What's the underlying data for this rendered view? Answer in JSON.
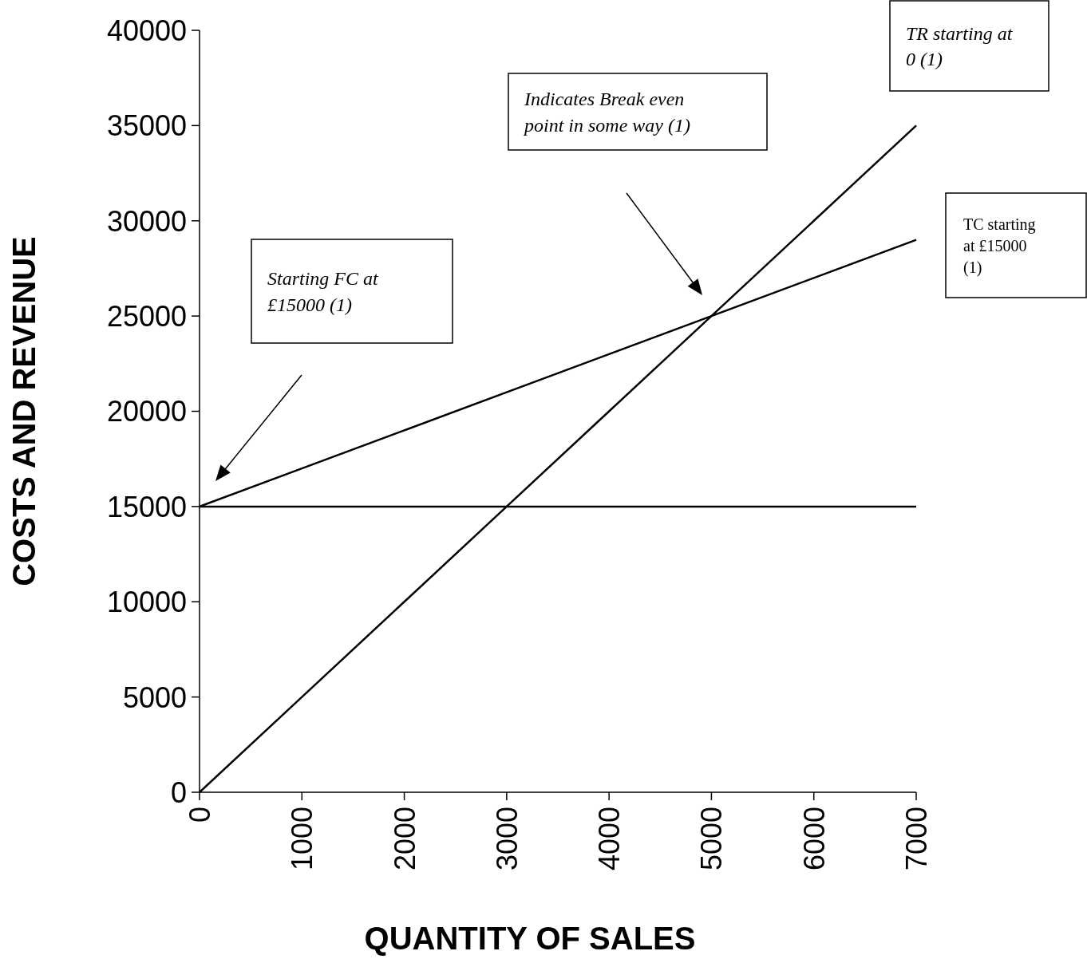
{
  "chart_data": {
    "type": "line",
    "xlabel": "QUANTITY OF SALES",
    "ylabel": "COSTS AND REVENUE",
    "x": [
      0,
      1000,
      2000,
      3000,
      4000,
      5000,
      6000,
      7000
    ],
    "series": [
      {
        "color": "#000000",
        "values": [
          15000,
          15000,
          15000,
          15000,
          15000,
          15000,
          15000,
          15000
        ]
      },
      {
        "color": "#000000",
        "values": [
          15000,
          17000,
          19000,
          21000,
          23000,
          25000,
          27000,
          29000
        ]
      },
      {
        "color": "#000000",
        "values": [
          0,
          5000,
          10000,
          15000,
          20000,
          25000,
          30000,
          35000
        ]
      }
    ],
    "xlim": [
      0,
      7000
    ],
    "xticks": [
      0,
      1000,
      2000,
      3000,
      4000,
      5000,
      6000,
      7000
    ],
    "ylim": [
      0,
      40000
    ],
    "yticks": [
      0,
      5000,
      10000,
      15000,
      20000,
      25000,
      30000,
      35000,
      40000
    ],
    "line_style": "solid",
    "annotations": [
      "Starting FC at £15000 (1)",
      "Indicates Break even point in some way (1)",
      "TR starting at 0 (1)",
      "TC starting at £15000 (1)"
    ]
  }
}
